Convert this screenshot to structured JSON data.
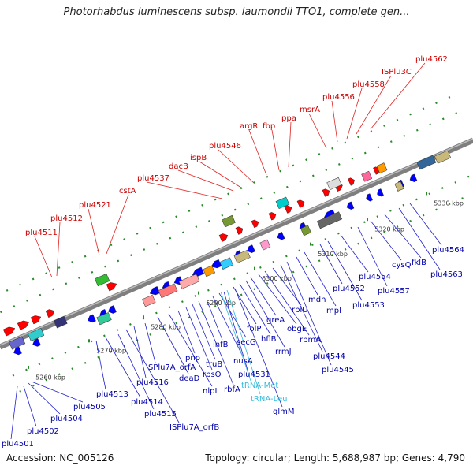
{
  "title": "Photorhabdus luminescens subsp. laumondii TTO1, complete gen...",
  "footer": {
    "accession": "Accession: NC_005126",
    "summary": "Topology: circular; Length: 5,688,987 bp; Genes: 4,790"
  },
  "colors": {
    "forward_label": "#cc0000",
    "reverse_label": "#0000aa",
    "rna_label": "#33bbdd",
    "backbone": "#7f7f7f",
    "forward_feature": "#ff0000",
    "reverse_feature": "#0000ff"
  },
  "ticks": [
    "5260 kbp",
    "5270 kbp",
    "5280 kbp",
    "5290 kbp",
    "5300 kbp",
    "5310 kbp",
    "5320 kbp",
    "5330 kbp"
  ],
  "forward_labels": [
    "plu4511",
    "plu4512",
    "plu4521",
    "cstA",
    "plu4537",
    "dacB",
    "ispB",
    "plu4546",
    "argR",
    "fbp",
    "ppa",
    "msrA",
    "plu4556",
    "plu4558",
    "ISPlu3C",
    "plu4562"
  ],
  "reverse_labels": [
    "plu4501",
    "plu4502",
    "plu4504",
    "plu4505",
    "plu4513",
    "plu4514",
    "plu4515",
    "ISPlu7A_orfB",
    "plu4516",
    "ISPlu7A_orfA",
    "deaD",
    "nlpI",
    "pnp",
    "rpsO",
    "truB",
    "rbfA",
    "infB",
    "nusA",
    "secG",
    "plu4531",
    "glmM",
    "folP",
    "hflB",
    "rrmJ",
    "greA",
    "obgE",
    "rpmA",
    "rplU",
    "plu4544",
    "plu4545",
    "mdh",
    "mpl",
    "plu4552",
    "plu4553",
    "plu4554",
    "plu4557",
    "cysQ",
    "fklB",
    "plu4563",
    "plu4564"
  ],
  "rna_labels": [
    "tRNA-Met",
    "tRNA-Leu"
  ]
}
